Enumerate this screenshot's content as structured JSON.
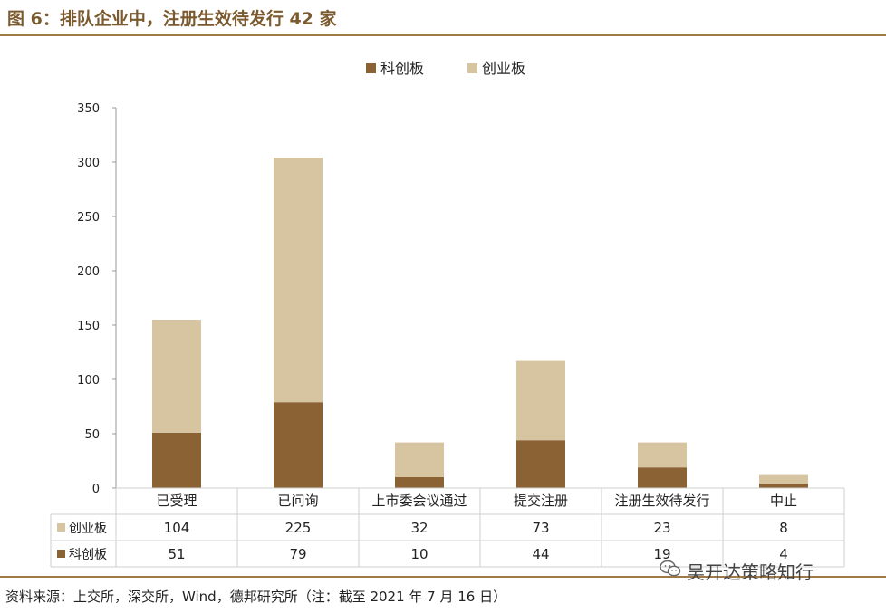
{
  "header": {
    "title": "图 6：排队企业中，注册生效待发行 42 家"
  },
  "footer": {
    "source": "资料来源：上交所，深交所，Wind，德邦研究所（注：截至 2021 年 7 月 16 日）"
  },
  "watermark": {
    "text": "吴开达策略知行",
    "icon": "wechat-icon"
  },
  "colors": {
    "kechuang": "#8b6234",
    "chuangye": "#d7c5a2",
    "axis": "#999999",
    "rule": "#a07a46"
  },
  "chart_data": {
    "type": "bar",
    "stacked": true,
    "categories": [
      "已受理",
      "已问询",
      "上市委会议通过",
      "提交注册",
      "注册生效待发行",
      "中止"
    ],
    "series": [
      {
        "name": "科创板",
        "values": [
          51,
          79,
          10,
          44,
          19,
          4
        ]
      },
      {
        "name": "创业板",
        "values": [
          104,
          225,
          32,
          73,
          23,
          8
        ]
      }
    ],
    "ylim": [
      0,
      350
    ],
    "yticks": [
      0,
      50,
      100,
      150,
      200,
      250,
      300,
      350
    ],
    "legend": "top-center",
    "data_table": true,
    "table_row_order": [
      "创业板",
      "科创板"
    ]
  }
}
